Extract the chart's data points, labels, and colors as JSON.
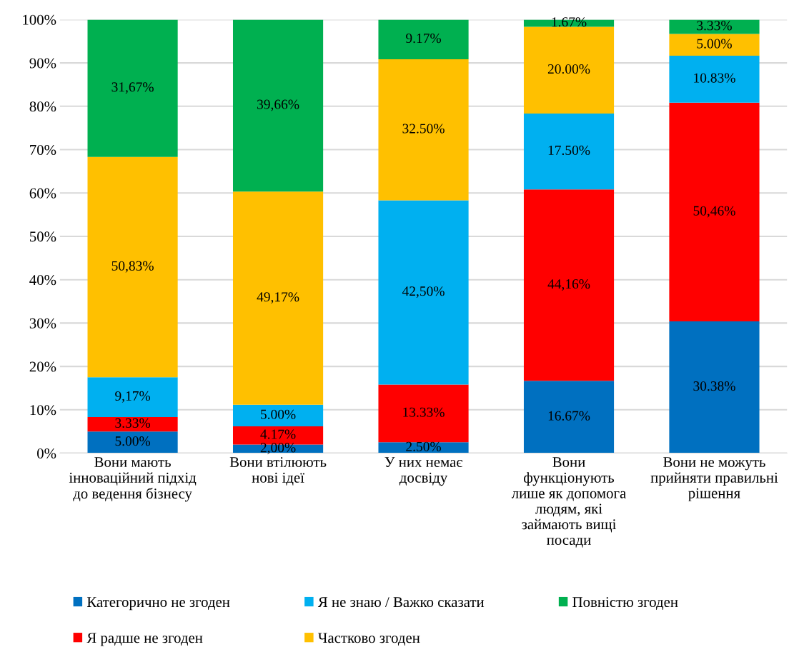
{
  "chart_data": {
    "type": "bar",
    "stacked": true,
    "categories": [
      "Вони мають\nінноваційний підхід\nдо ведення бізнесу",
      "Вони втілюють\nнові ідеї",
      "У них немає\nдосвіду",
      "Вони\nфункціонують\nлише як допомога\nлюдям, які\nзаймають вищі\nпосади",
      "Вони не можуть\nприйняти правильні\nрішення"
    ],
    "ylim": [
      0,
      100
    ],
    "yticks": [
      {
        "value": 0,
        "label": "0%"
      },
      {
        "value": 10,
        "label": "10%"
      },
      {
        "value": 20,
        "label": "20%"
      },
      {
        "value": 30,
        "label": "30%"
      },
      {
        "value": 40,
        "label": "40%"
      },
      {
        "value": 50,
        "label": "50%"
      },
      {
        "value": 60,
        "label": "60%"
      },
      {
        "value": 70,
        "label": "70%"
      },
      {
        "value": 80,
        "label": "80%"
      },
      {
        "value": 90,
        "label": "90%"
      },
      {
        "value": 100,
        "label": "100%"
      }
    ],
    "grid": "y",
    "legend": "bottom",
    "series": [
      {
        "name": "Категорично не згоден",
        "color": "#0070c0",
        "values": [
          5.0,
          2.0,
          2.5,
          16.67,
          30.38
        ],
        "value_labels": [
          "5.00%",
          "2,00%",
          "2.50%",
          "16.67%",
          "30.38%"
        ]
      },
      {
        "name": "Я радше не згоден",
        "color": "#ff0000",
        "values": [
          3.33,
          4.17,
          13.33,
          44.16,
          50.46
        ],
        "value_labels": [
          "3.33%",
          "4.17%",
          "13.33%",
          "44,16%",
          "50,46%"
        ]
      },
      {
        "name": "Я не знаю / Важко сказати",
        "color": "#00b0f0",
        "values": [
          9.17,
          5.0,
          42.5,
          17.5,
          10.83
        ],
        "value_labels": [
          "9,17%",
          "5.00%",
          "42,50%",
          "17.50%",
          "10.83%"
        ]
      },
      {
        "name": "Частково згоден",
        "color": "#ffc000",
        "values": [
          50.83,
          49.17,
          32.5,
          20.0,
          5.0
        ],
        "value_labels": [
          "50,83%",
          "49,17%",
          "32.50%",
          "20.00%",
          "5.00%"
        ]
      },
      {
        "name": "Повністю згоден",
        "color": "#00b050",
        "values": [
          31.67,
          39.66,
          9.17,
          1.67,
          3.33
        ],
        "value_labels": [
          "31,67%",
          "39,66%",
          "9.17%",
          "1.67%",
          "3.33%"
        ]
      }
    ]
  }
}
